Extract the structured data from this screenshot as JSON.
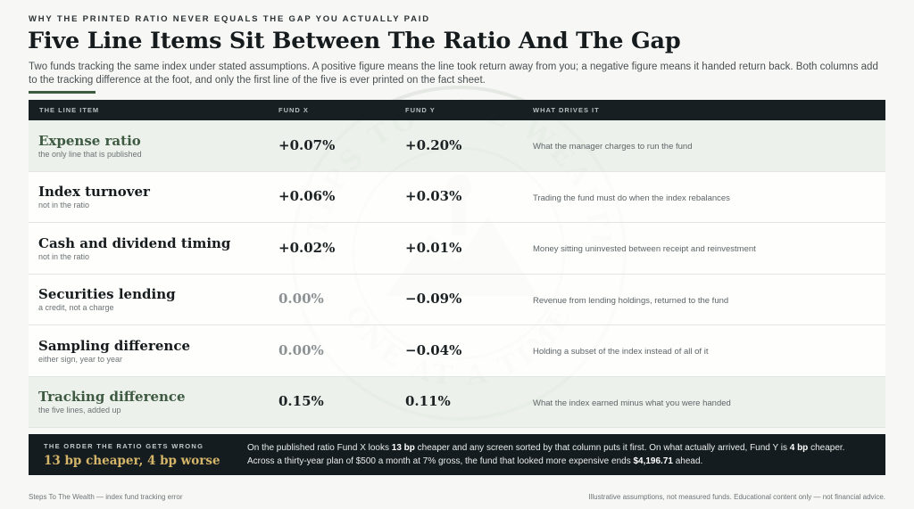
{
  "header": {
    "kicker": "WHY THE PRINTED RATIO NEVER EQUALS THE GAP YOU ACTUALLY PAID",
    "title": "Five Line Items Sit Between The Ratio And The Gap",
    "subtitle": "Two funds tracking the same index under stated assumptions. A positive figure means the line took return away from you; a negative figure means it handed return back. Both columns add to the tracking difference at the foot, and only the first line of the five is ever printed on the fact sheet."
  },
  "table": {
    "columns": [
      "THE LINE ITEM",
      "FUND X",
      "FUND Y",
      "WHAT DRIVES IT"
    ],
    "rows": [
      {
        "name": "Expense ratio",
        "note": "the only line that is published",
        "fund_x": "+0.07%",
        "fund_y": "+0.20%",
        "driver": "What the manager charges to run the fund"
      },
      {
        "name": "Index turnover",
        "note": "not in the ratio",
        "fund_x": "+0.06%",
        "fund_y": "+0.03%",
        "driver": "Trading the fund must do when the index rebalances"
      },
      {
        "name": "Cash and dividend timing",
        "note": "not in the ratio",
        "fund_x": "+0.02%",
        "fund_y": "+0.01%",
        "driver": "Money sitting uninvested between receipt and reinvestment"
      },
      {
        "name": "Securities lending",
        "note": "a credit, not a charge",
        "fund_x": "0.00%",
        "fund_y": "−0.09%",
        "driver": "Revenue from lending holdings, returned to the fund"
      },
      {
        "name": "Sampling difference",
        "note": "either sign, year to year",
        "fund_x": "0.00%",
        "fund_y": "−0.04%",
        "driver": "Holding a subset of the index instead of all of it"
      },
      {
        "name": "Tracking difference",
        "note": "the five lines, added up",
        "fund_x": "0.15%",
        "fund_y": "0.11%",
        "driver": "What the index earned minus what you were handed"
      }
    ]
  },
  "banner": {
    "kicker": "THE ORDER THE RATIO GETS WRONG",
    "headline": "13 bp cheaper, 4 bp worse",
    "text_1": "On the published ratio Fund X looks ",
    "bold_1": "13 bp",
    "text_2": " cheaper and any screen sorted by that column puts it first. On what actually arrived, Fund Y is ",
    "bold_2": "4 bp",
    "text_3": " cheaper. Across a thirty-year plan of $500 a month at 7% gross, the fund that looked more expensive ends ",
    "bold_3": "$4,196.71",
    "text_4": " ahead."
  },
  "footer": {
    "left": "Steps To The Wealth — index fund tracking error",
    "right": "Illustrative assumptions, not measured funds. Educational content only — not financial advice."
  },
  "watermark": {
    "top_text": "STEPS TO THE WEALTH",
    "bottom_text": "ONE AT A TIME"
  },
  "colors": {
    "accent_green": "#3b5a3e",
    "banner_gold": "#d5b56a",
    "header_dark": "#181f22"
  }
}
